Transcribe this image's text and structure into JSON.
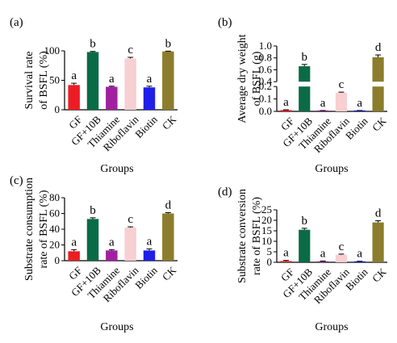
{
  "chart_data": [
    {
      "panel": "(a)",
      "type": "bar",
      "title": "",
      "ylabel_lines": [
        "Survival rate",
        "of BSFL (%)"
      ],
      "xlabel": "Groups",
      "categories": [
        "GF",
        "GF+10B",
        "Thiamine",
        "Riboflavin",
        "Biotin",
        "CK"
      ],
      "values": [
        42,
        98,
        39,
        87,
        38,
        99
      ],
      "errors": [
        3,
        1,
        1,
        2,
        2,
        0.5
      ],
      "letters": [
        "a",
        "b",
        "a",
        "c",
        "a",
        "b"
      ],
      "colors": [
        "#ed1c24",
        "#0a6b47",
        "#a020a0",
        "#f8cfd2",
        "#1f1fe8",
        "#8b7d2c"
      ],
      "ylim": [
        0,
        100
      ],
      "yticks": [
        0,
        50,
        100
      ],
      "ytick_labels": [
        "0",
        "50",
        "100"
      ]
    },
    {
      "panel": "(b)",
      "type": "bar",
      "title": "",
      "ylabel_lines": [
        "Average dry weight",
        "of BSFL (g)"
      ],
      "xlabel": "Groups",
      "categories": [
        "GF",
        "GF+10B",
        "Thiamine",
        "Riboflavin",
        "Biotin",
        "CK"
      ],
      "values": [
        0.01,
        0.66,
        0.005,
        0.15,
        0.005,
        0.81
      ],
      "errors": [
        0.003,
        0.03,
        0.002,
        0.005,
        0.002,
        0.04
      ],
      "letters": [
        "a",
        "b",
        "a",
        "c",
        "a",
        "d"
      ],
      "colors": [
        "#ed1c24",
        "#0a6b47",
        "#a020a0",
        "#f8cfd2",
        "#1f1fe8",
        "#8b7d2c"
      ],
      "ylim": [
        0,
        1.0
      ],
      "axis_break": [
        0.2,
        0.4
      ],
      "yticks": [
        0,
        0.1,
        0.2,
        0.4,
        0.6,
        0.8,
        1.0
      ],
      "ytick_labels": [
        "0.0",
        "0.1",
        "0.2",
        "0.4",
        "0.6",
        "0.8",
        "1.0"
      ]
    },
    {
      "panel": "(c)",
      "type": "bar",
      "title": "",
      "ylabel_lines": [
        "Substrate consumption",
        "rate of BSFL (%)"
      ],
      "xlabel": "Groups",
      "categories": [
        "GF",
        "GF+10B",
        "Thiamine",
        "Riboflavin",
        "Biotin",
        "CK"
      ],
      "values": [
        12,
        53,
        13,
        42,
        13,
        60
      ],
      "errors": [
        2,
        1.5,
        1,
        1,
        2,
        1
      ],
      "letters": [
        "a",
        "b",
        "a",
        "c",
        "a",
        "d"
      ],
      "colors": [
        "#ed1c24",
        "#0a6b47",
        "#a020a0",
        "#f8cfd2",
        "#1f1fe8",
        "#8b7d2c"
      ],
      "ylim": [
        0,
        80
      ],
      "yticks": [
        0,
        20,
        40,
        60,
        80
      ],
      "ytick_labels": [
        "0",
        "20",
        "40",
        "60",
        "80"
      ]
    },
    {
      "panel": "(d)",
      "type": "bar",
      "title": "",
      "ylabel_lines": [
        "Substrate conversion",
        "rate of BSFL (%)"
      ],
      "xlabel": "Groups",
      "categories": [
        "GF",
        "GF+10B",
        "Thiamine",
        "Riboflavin",
        "Biotin",
        "CK"
      ],
      "values": [
        0.6,
        15.5,
        0.4,
        3.6,
        0.3,
        19
      ],
      "errors": [
        0.3,
        0.7,
        0.2,
        0.3,
        0.2,
        0.8
      ],
      "letters": [
        "a",
        "b",
        "a",
        "c",
        "a",
        "d"
      ],
      "colors": [
        "#ed1c24",
        "#0a6b47",
        "#a020a0",
        "#f8cfd2",
        "#1f1fe8",
        "#8b7d2c"
      ],
      "ylim": [
        0,
        25
      ],
      "yticks": [
        0,
        5,
        10,
        15,
        20,
        25
      ],
      "ytick_labels": [
        "0",
        "5",
        "10",
        "15",
        "20",
        "25"
      ]
    }
  ]
}
